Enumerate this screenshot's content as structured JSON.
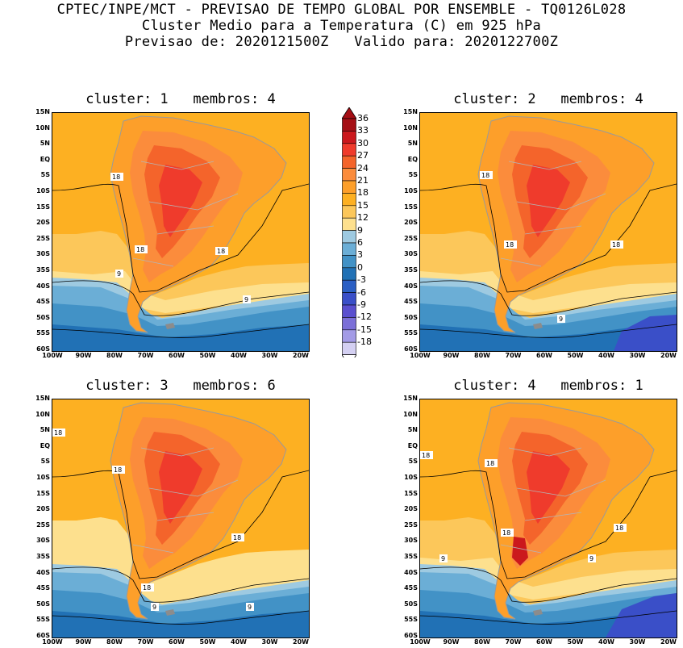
{
  "header": {
    "line1": "CPTEC/INPE/MCT - PREVISAO DE TEMPO GLOBAL POR ENSEMBLE - TQ0126L028",
    "line2": "Cluster Medio para a Temperatura (C) em 925 hPa",
    "line3": "Previsao de: 2020121500Z   Valido para: 2020122700Z"
  },
  "panels": [
    {
      "title": "cluster: 1   membros: 4"
    },
    {
      "title": "cluster: 2   membros: 4"
    },
    {
      "title": "cluster: 3   membros: 6"
    },
    {
      "title": "cluster: 4   membros: 1"
    }
  ],
  "lat_labels": [
    "15N",
    "10N",
    "5N",
    "EQ",
    "5S",
    "10S",
    "15S",
    "20S",
    "25S",
    "30S",
    "35S",
    "40S",
    "45S",
    "50S",
    "55S",
    "60S"
  ],
  "lon_labels": [
    "100W",
    "90W",
    "80W",
    "70W",
    "60W",
    "50W",
    "40W",
    "30W",
    "20W"
  ],
  "colorbar": {
    "labels": [
      "36",
      "33",
      "30",
      "27",
      "24",
      "21",
      "18",
      "15",
      "12",
      "9",
      "6",
      "3",
      "0",
      "-3",
      "-6",
      "-9",
      "-12",
      "-15",
      "-18"
    ],
    "colors": [
      "#a50f15",
      "#cb181d",
      "#ef3b2c",
      "#f4642b",
      "#fb8c3c",
      "#fd9f2a",
      "#fdb022",
      "#fcc75a",
      "#fde08e",
      "#9ecae1",
      "#6baed6",
      "#4292c6",
      "#2171b5",
      "#2b5fc4",
      "#3a4fc8",
      "#5a4fcf",
      "#7b6fd8",
      "#a39be6",
      "#d4d0f2"
    ]
  },
  "contour_labels": {
    "p1": [
      "18",
      "18",
      "18",
      "9",
      "9"
    ],
    "p2": [
      "18",
      "18",
      "18",
      "9"
    ],
    "p3": [
      "18",
      "18",
      "18",
      "18",
      "9",
      "9"
    ],
    "p4": [
      "18",
      "18",
      "18",
      "18",
      "9",
      "9"
    ]
  }
}
